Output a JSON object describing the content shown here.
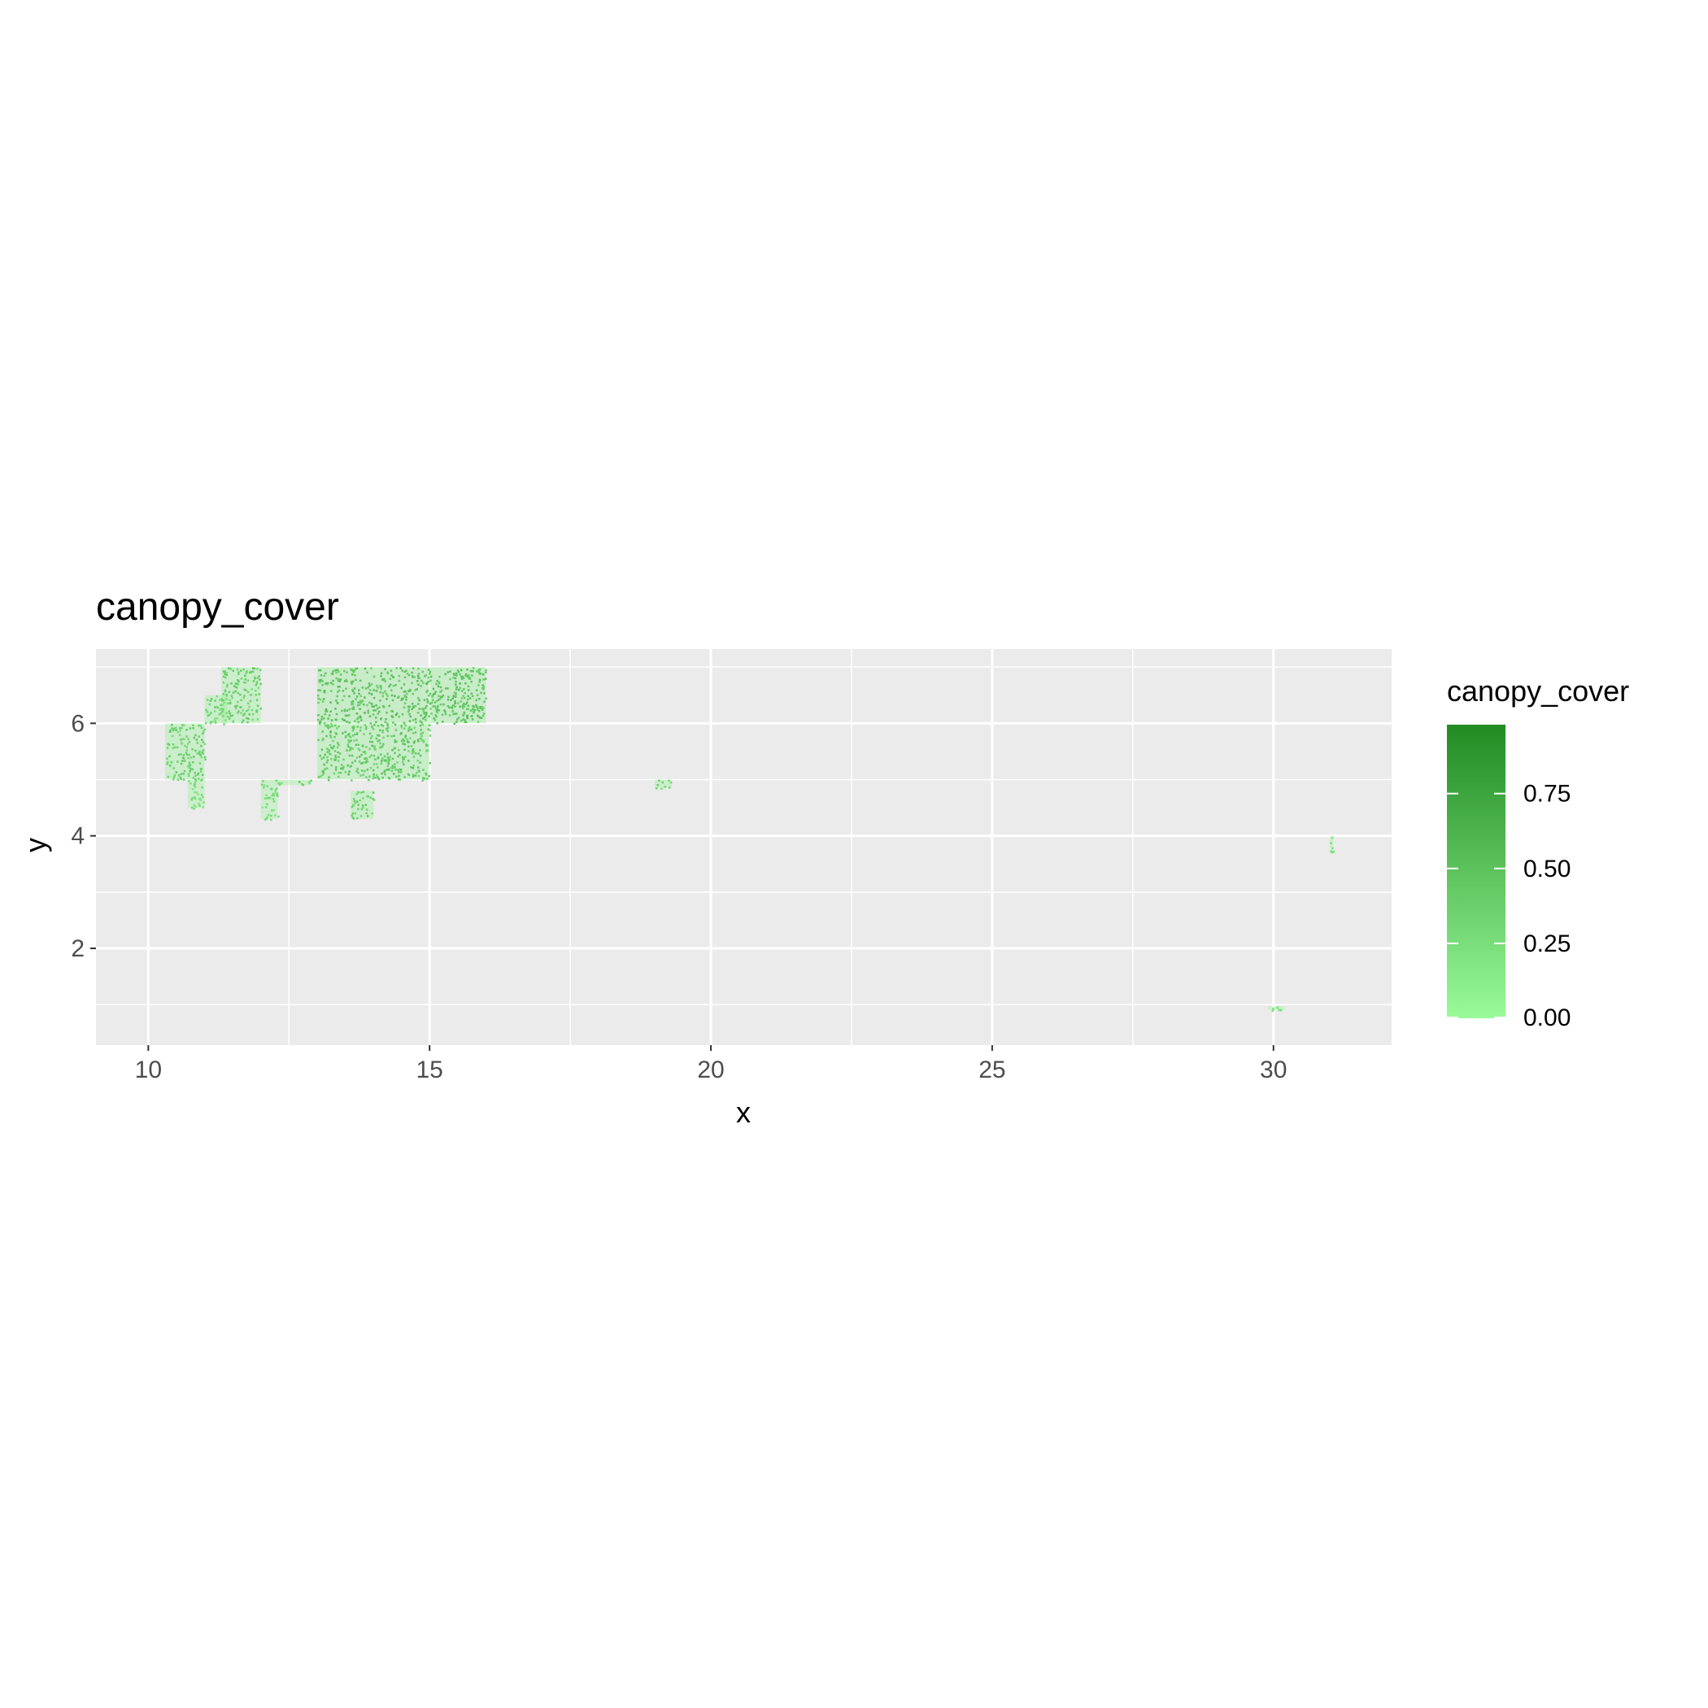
{
  "chart_data": {
    "type": "heatmap",
    "title": "canopy_cover",
    "xlabel": "x",
    "ylabel": "y",
    "xlim": [
      9.07,
      32.1
    ],
    "ylim": [
      0.28,
      7.32
    ],
    "x_ticks": [
      10,
      15,
      20,
      25,
      30
    ],
    "x_tick_labels": [
      "10",
      "15",
      "20",
      "25",
      "30"
    ],
    "y_ticks": [
      2,
      4,
      6
    ],
    "y_tick_labels": [
      "2",
      "4",
      "6"
    ],
    "x_minor": [
      12.5,
      17.5,
      22.5,
      27.5
    ],
    "y_minor": [
      1,
      3,
      5,
      7
    ],
    "grid": true,
    "panel_background": "#ebebeb",
    "legend": {
      "title": "canopy_cover",
      "position": "right",
      "breaks": [
        0.75,
        0.5,
        0.25,
        0.0
      ],
      "labels": [
        "0.75",
        "0.50",
        "0.25",
        "0.00"
      ],
      "range": [
        0,
        0.98
      ],
      "low_color": "#98fb98",
      "high_color": "#228b22"
    },
    "cells": [
      {
        "x0": 13.0,
        "x1": 16.0,
        "y0": 6.0,
        "y1": 7.0,
        "value": 0.35
      },
      {
        "x0": 13.0,
        "x1": 15.0,
        "y0": 5.0,
        "y1": 6.0,
        "value": 0.3
      },
      {
        "x0": 11.3,
        "x1": 12.0,
        "y0": 6.0,
        "y1": 7.0,
        "value": 0.25
      },
      {
        "x0": 10.3,
        "x1": 11.0,
        "y0": 5.0,
        "y1": 6.0,
        "value": 0.25
      },
      {
        "x0": 11.0,
        "x1": 11.4,
        "y0": 6.0,
        "y1": 6.5,
        "value": 0.2
      },
      {
        "x0": 10.7,
        "x1": 11.0,
        "y0": 4.5,
        "y1": 5.0,
        "value": 0.15
      },
      {
        "x0": 12.0,
        "x1": 12.9,
        "y0": 4.9,
        "y1": 5.0,
        "value": 0.2
      },
      {
        "x0": 12.0,
        "x1": 12.3,
        "y0": 4.3,
        "y1": 4.9,
        "value": 0.15
      },
      {
        "x0": 13.6,
        "x1": 14.0,
        "y0": 4.3,
        "y1": 4.8,
        "value": 0.25
      },
      {
        "x0": 19.0,
        "x1": 19.3,
        "y0": 4.85,
        "y1": 5.0,
        "value": 0.2
      },
      {
        "x0": 29.9,
        "x1": 30.2,
        "y0": 0.9,
        "y1": 0.97,
        "value": 0.1
      },
      {
        "x0": 31.0,
        "x1": 31.06,
        "y0": 3.7,
        "y1": 4.0,
        "value": 0.1
      }
    ]
  }
}
